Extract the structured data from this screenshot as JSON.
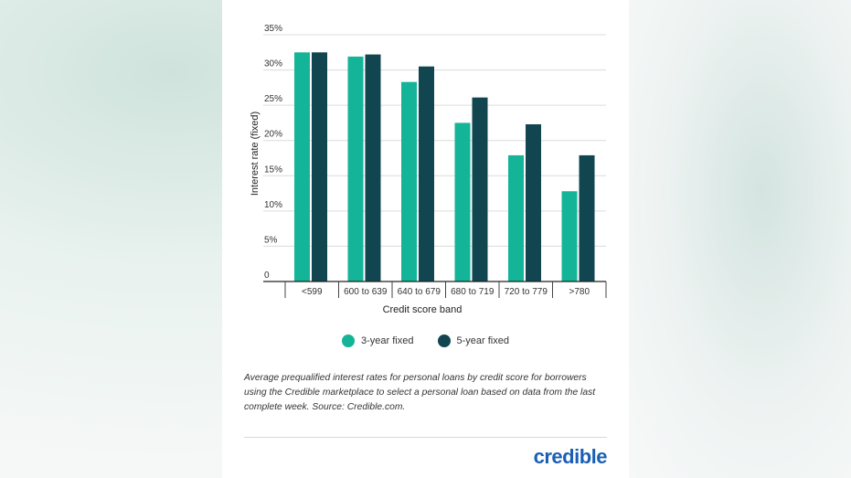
{
  "chart_data": {
    "type": "bar",
    "title": "",
    "xlabel": "Credit score band",
    "ylabel": "Interest rate (fixed)",
    "categories": [
      "<599",
      "600 to 639",
      "640 to 679",
      "680 to 719",
      "720 to 779",
      ">780"
    ],
    "series": [
      {
        "name": "3-year fixed",
        "values": [
          32.5,
          31.9,
          28.3,
          22.5,
          17.9,
          12.8
        ]
      },
      {
        "name": "5-year fixed",
        "values": [
          32.5,
          32.2,
          30.5,
          26.1,
          22.3,
          17.9
        ]
      }
    ],
    "ylim": [
      0,
      35
    ],
    "yticks": [
      0,
      5,
      10,
      15,
      20,
      25,
      30,
      35
    ],
    "ytick_labels": [
      "0",
      "5%",
      "10%",
      "15%",
      "20%",
      "25%",
      "30%",
      "35%"
    ],
    "grid": true,
    "legend_position": "bottom-center",
    "colors": [
      "#13b497",
      "#114650"
    ]
  },
  "legend": {
    "items": [
      {
        "label": "3-year fixed",
        "color": "#13b497"
      },
      {
        "label": "5-year fixed",
        "color": "#114650"
      }
    ]
  },
  "caption": "Average prequalified interest rates for personal loans by credit score for borrowers using the Credible marketplace to select a personal loan based on data from the last complete week. Source: Credible.com.",
  "logo": {
    "text": "credible",
    "color": "#1a5fb4"
  }
}
